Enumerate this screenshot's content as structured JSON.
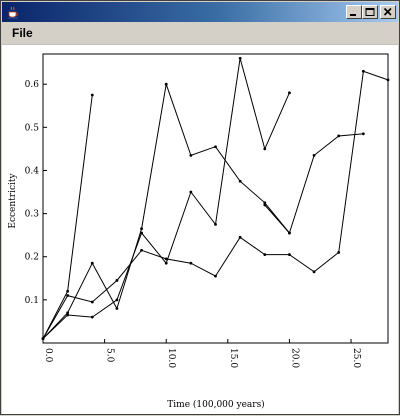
{
  "window": {
    "title": "",
    "icon": "java-cup-icon"
  },
  "menu": {
    "items": [
      {
        "label": "File"
      }
    ]
  },
  "chart_data": {
    "type": "line",
    "xlabel": "Time (100,000 years)",
    "ylabel": "Eccentricity",
    "xlim": [
      0,
      28
    ],
    "ylim": [
      0,
      0.67
    ],
    "x_ticks": [
      0,
      5,
      10,
      15,
      20,
      25
    ],
    "x_tick_labels": [
      "0.0",
      "5.0",
      "10.0",
      "15.0",
      "20.0",
      "25.0"
    ],
    "y_ticks": [
      0.1,
      0.2,
      0.3,
      0.4,
      0.5,
      0.6
    ],
    "y_tick_labels": [
      "0.1",
      "0.2",
      "0.3",
      "0.4",
      "0.5",
      "0.6"
    ],
    "grid": false,
    "legend": false,
    "color": "#000000",
    "series": [
      {
        "x": [
          0,
          2,
          4
        ],
        "y": [
          0.01,
          0.12,
          0.575
        ]
      },
      {
        "x": [
          0,
          2,
          4,
          6,
          8,
          10,
          12,
          14,
          16,
          18,
          20
        ],
        "y": [
          0.01,
          0.07,
          0.185,
          0.08,
          0.265,
          0.6,
          0.435,
          0.455,
          0.375,
          0.325,
          0.255
        ]
      },
      {
        "x": [
          0,
          2,
          4,
          6,
          8,
          10,
          12,
          14,
          16,
          18,
          20
        ],
        "y": [
          0.01,
          0.065,
          0.06,
          0.1,
          0.255,
          0.185,
          0.35,
          0.275,
          0.66,
          0.45,
          0.58
        ]
      },
      {
        "x": [
          0,
          2,
          4,
          6,
          8,
          10,
          12,
          14,
          16,
          18,
          20,
          22,
          24,
          26,
          28
        ],
        "y": [
          0.01,
          0.11,
          0.095,
          0.145,
          0.215,
          0.195,
          0.185,
          0.155,
          0.245,
          0.205,
          0.205,
          0.165,
          0.21,
          0.63,
          0.61
        ]
      },
      {
        "x": [
          18,
          20,
          22,
          24,
          26
        ],
        "y": [
          0.32,
          0.255,
          0.435,
          0.48,
          0.485
        ]
      }
    ]
  }
}
